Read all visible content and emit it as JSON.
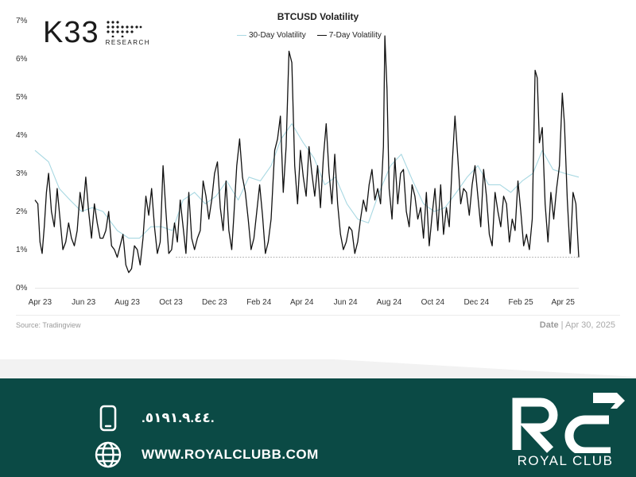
{
  "brand": {
    "name": "K33",
    "sub": "RESEARCH"
  },
  "chart_data": {
    "type": "line",
    "title": "BTCUSD Volatility",
    "x_range": [
      "2023-04-01",
      "2025-04-30"
    ],
    "ylim": [
      0,
      7
    ],
    "yticks": [
      "0%",
      "1%",
      "2%",
      "3%",
      "4%",
      "5%",
      "6%",
      "7%"
    ],
    "xticks": [
      "Apr 23",
      "Jun 23",
      "Aug 23",
      "Oct 23",
      "Dec 23",
      "Feb 24",
      "Apr 24",
      "Jun 24",
      "Aug 24",
      "Oct 24",
      "Dec 24",
      "Feb 25",
      "Apr 25"
    ],
    "reference_line": 0.8,
    "legend_position": "top-center",
    "grid": false,
    "series": [
      {
        "name": "30-Day Volatility",
        "color": "#a8d8e2",
        "points": [
          [
            "2023-04-01",
            3.6
          ],
          [
            "2023-04-20",
            3.3
          ],
          [
            "2023-05-05",
            2.6
          ],
          [
            "2023-05-20",
            2.3
          ],
          [
            "2023-06-05",
            2.0
          ],
          [
            "2023-06-20",
            2.1
          ],
          [
            "2023-07-05",
            2.0
          ],
          [
            "2023-07-25",
            1.5
          ],
          [
            "2023-08-10",
            1.3
          ],
          [
            "2023-08-25",
            1.3
          ],
          [
            "2023-09-10",
            1.6
          ],
          [
            "2023-09-25",
            1.6
          ],
          [
            "2023-10-10",
            1.5
          ],
          [
            "2023-10-25",
            2.3
          ],
          [
            "2023-11-10",
            2.5
          ],
          [
            "2023-11-25",
            2.2
          ],
          [
            "2023-12-10",
            2.4
          ],
          [
            "2023-12-25",
            2.8
          ],
          [
            "2024-01-10",
            2.3
          ],
          [
            "2024-01-25",
            2.9
          ],
          [
            "2024-02-10",
            2.8
          ],
          [
            "2024-02-25",
            3.2
          ],
          [
            "2024-03-10",
            3.9
          ],
          [
            "2024-03-25",
            4.3
          ],
          [
            "2024-04-10",
            3.8
          ],
          [
            "2024-04-25",
            3.4
          ],
          [
            "2024-05-10",
            2.7
          ],
          [
            "2024-05-25",
            2.9
          ],
          [
            "2024-06-10",
            2.2
          ],
          [
            "2024-06-25",
            1.8
          ],
          [
            "2024-07-10",
            1.7
          ],
          [
            "2024-07-25",
            2.5
          ],
          [
            "2024-08-10",
            3.2
          ],
          [
            "2024-08-25",
            3.5
          ],
          [
            "2024-09-10",
            2.8
          ],
          [
            "2024-09-25",
            2.2
          ],
          [
            "2024-10-10",
            2.0
          ],
          [
            "2024-10-25",
            2.1
          ],
          [
            "2024-11-10",
            2.5
          ],
          [
            "2024-11-25",
            2.9
          ],
          [
            "2024-12-10",
            3.2
          ],
          [
            "2024-12-25",
            2.7
          ],
          [
            "2025-01-10",
            2.7
          ],
          [
            "2025-01-25",
            2.5
          ],
          [
            "2025-02-10",
            2.8
          ],
          [
            "2025-02-25",
            3.0
          ],
          [
            "2025-03-10",
            3.6
          ],
          [
            "2025-03-25",
            3.1
          ],
          [
            "2025-04-10",
            3.0
          ],
          [
            "2025-04-30",
            2.9
          ]
        ]
      },
      {
        "name": "7-Day Volatility",
        "color": "#111111",
        "points": [
          [
            "2023-04-01",
            2.3
          ],
          [
            "2023-04-05",
            2.2
          ],
          [
            "2023-04-08",
            1.2
          ],
          [
            "2023-04-11",
            0.9
          ],
          [
            "2023-04-14",
            1.6
          ],
          [
            "2023-04-17",
            2.5
          ],
          [
            "2023-04-20",
            3.0
          ],
          [
            "2023-04-24",
            2.0
          ],
          [
            "2023-04-28",
            1.6
          ],
          [
            "2023-05-02",
            2.6
          ],
          [
            "2023-05-06",
            1.8
          ],
          [
            "2023-05-10",
            1.0
          ],
          [
            "2023-05-14",
            1.2
          ],
          [
            "2023-05-18",
            1.7
          ],
          [
            "2023-05-22",
            1.3
          ],
          [
            "2023-05-26",
            1.1
          ],
          [
            "2023-05-30",
            1.5
          ],
          [
            "2023-06-03",
            2.5
          ],
          [
            "2023-06-07",
            2.0
          ],
          [
            "2023-06-11",
            2.9
          ],
          [
            "2023-06-15",
            2.0
          ],
          [
            "2023-06-19",
            1.3
          ],
          [
            "2023-06-23",
            2.2
          ],
          [
            "2023-06-27",
            1.7
          ],
          [
            "2023-07-01",
            1.3
          ],
          [
            "2023-07-05",
            1.3
          ],
          [
            "2023-07-09",
            1.5
          ],
          [
            "2023-07-13",
            2.0
          ],
          [
            "2023-07-17",
            1.1
          ],
          [
            "2023-07-21",
            1.0
          ],
          [
            "2023-07-25",
            0.8
          ],
          [
            "2023-07-29",
            1.1
          ],
          [
            "2023-08-02",
            1.4
          ],
          [
            "2023-08-06",
            0.6
          ],
          [
            "2023-08-10",
            0.4
          ],
          [
            "2023-08-14",
            0.5
          ],
          [
            "2023-08-18",
            1.1
          ],
          [
            "2023-08-22",
            1.0
          ],
          [
            "2023-08-26",
            0.6
          ],
          [
            "2023-08-30",
            1.3
          ],
          [
            "2023-09-03",
            2.4
          ],
          [
            "2023-09-07",
            1.9
          ],
          [
            "2023-09-11",
            2.6
          ],
          [
            "2023-09-15",
            1.6
          ],
          [
            "2023-09-19",
            0.9
          ],
          [
            "2023-09-23",
            1.2
          ],
          [
            "2023-09-27",
            3.2
          ],
          [
            "2023-10-01",
            2.0
          ],
          [
            "2023-10-05",
            0.9
          ],
          [
            "2023-10-09",
            1.0
          ],
          [
            "2023-10-13",
            1.7
          ],
          [
            "2023-10-17",
            1.2
          ],
          [
            "2023-10-21",
            2.3
          ],
          [
            "2023-10-25",
            1.6
          ],
          [
            "2023-10-29",
            0.9
          ],
          [
            "2023-11-02",
            2.5
          ],
          [
            "2023-11-06",
            1.3
          ],
          [
            "2023-11-10",
            1.0
          ],
          [
            "2023-11-14",
            1.3
          ],
          [
            "2023-11-18",
            1.5
          ],
          [
            "2023-11-22",
            2.8
          ],
          [
            "2023-11-26",
            2.4
          ],
          [
            "2023-11-30",
            1.8
          ],
          [
            "2023-12-04",
            2.3
          ],
          [
            "2023-12-08",
            3.0
          ],
          [
            "2023-12-12",
            3.3
          ],
          [
            "2023-12-16",
            2.1
          ],
          [
            "2023-12-20",
            1.5
          ],
          [
            "2023-12-24",
            2.8
          ],
          [
            "2023-12-28",
            1.5
          ],
          [
            "2024-01-01",
            1.0
          ],
          [
            "2024-01-04",
            1.9
          ],
          [
            "2024-01-08",
            3.2
          ],
          [
            "2024-01-12",
            3.9
          ],
          [
            "2024-01-16",
            2.9
          ],
          [
            "2024-01-20",
            2.5
          ],
          [
            "2024-01-24",
            1.8
          ],
          [
            "2024-01-28",
            1.0
          ],
          [
            "2024-02-01",
            1.3
          ],
          [
            "2024-02-05",
            2.0
          ],
          [
            "2024-02-09",
            2.7
          ],
          [
            "2024-02-13",
            1.9
          ],
          [
            "2024-02-17",
            0.9
          ],
          [
            "2024-02-21",
            1.2
          ],
          [
            "2024-02-25",
            1.8
          ],
          [
            "2024-03-01",
            3.6
          ],
          [
            "2024-03-05",
            3.9
          ],
          [
            "2024-03-09",
            4.5
          ],
          [
            "2024-03-13",
            2.5
          ],
          [
            "2024-03-17",
            3.7
          ],
          [
            "2024-03-21",
            6.2
          ],
          [
            "2024-03-25",
            5.9
          ],
          [
            "2024-03-29",
            3.2
          ],
          [
            "2024-04-02",
            2.2
          ],
          [
            "2024-04-06",
            3.6
          ],
          [
            "2024-04-10",
            2.9
          ],
          [
            "2024-04-14",
            2.4
          ],
          [
            "2024-04-18",
            3.7
          ],
          [
            "2024-04-22",
            3.0
          ],
          [
            "2024-04-26",
            2.4
          ],
          [
            "2024-04-30",
            3.2
          ],
          [
            "2024-05-04",
            2.1
          ],
          [
            "2024-05-08",
            3.4
          ],
          [
            "2024-05-12",
            4.3
          ],
          [
            "2024-05-16",
            3.0
          ],
          [
            "2024-05-20",
            2.2
          ],
          [
            "2024-05-24",
            3.5
          ],
          [
            "2024-05-28",
            2.2
          ],
          [
            "2024-06-01",
            1.4
          ],
          [
            "2024-06-05",
            1.0
          ],
          [
            "2024-06-09",
            1.2
          ],
          [
            "2024-06-13",
            1.6
          ],
          [
            "2024-06-17",
            1.5
          ],
          [
            "2024-06-21",
            0.9
          ],
          [
            "2024-06-25",
            1.2
          ],
          [
            "2024-06-29",
            1.8
          ],
          [
            "2024-07-03",
            2.3
          ],
          [
            "2024-07-07",
            2.0
          ],
          [
            "2024-07-11",
            2.7
          ],
          [
            "2024-07-15",
            3.1
          ],
          [
            "2024-07-19",
            2.3
          ],
          [
            "2024-07-23",
            2.6
          ],
          [
            "2024-07-27",
            2.2
          ],
          [
            "2024-07-31",
            3.7
          ],
          [
            "2024-08-02",
            6.6
          ],
          [
            "2024-08-05",
            5.2
          ],
          [
            "2024-08-08",
            2.6
          ],
          [
            "2024-08-12",
            1.8
          ],
          [
            "2024-08-16",
            3.4
          ],
          [
            "2024-08-20",
            2.2
          ],
          [
            "2024-08-24",
            3.0
          ],
          [
            "2024-08-28",
            3.1
          ],
          [
            "2024-09-01",
            2.0
          ],
          [
            "2024-09-05",
            1.6
          ],
          [
            "2024-09-09",
            2.7
          ],
          [
            "2024-09-13",
            2.4
          ],
          [
            "2024-09-17",
            1.8
          ],
          [
            "2024-09-21",
            2.1
          ],
          [
            "2024-09-25",
            1.3
          ],
          [
            "2024-09-29",
            2.5
          ],
          [
            "2024-10-03",
            1.1
          ],
          [
            "2024-10-07",
            1.9
          ],
          [
            "2024-10-11",
            2.6
          ],
          [
            "2024-10-15",
            1.5
          ],
          [
            "2024-10-19",
            2.7
          ],
          [
            "2024-10-23",
            1.4
          ],
          [
            "2024-10-27",
            2.1
          ],
          [
            "2024-10-31",
            1.6
          ],
          [
            "2024-11-04",
            3.2
          ],
          [
            "2024-11-08",
            4.5
          ],
          [
            "2024-11-12",
            3.4
          ],
          [
            "2024-11-16",
            2.2
          ],
          [
            "2024-11-20",
            2.6
          ],
          [
            "2024-11-24",
            2.5
          ],
          [
            "2024-11-28",
            1.9
          ],
          [
            "2024-12-02",
            2.7
          ],
          [
            "2024-12-06",
            3.2
          ],
          [
            "2024-12-10",
            2.4
          ],
          [
            "2024-12-14",
            1.6
          ],
          [
            "2024-12-18",
            3.1
          ],
          [
            "2024-12-22",
            2.4
          ],
          [
            "2024-12-26",
            1.4
          ],
          [
            "2024-12-30",
            1.1
          ],
          [
            "2025-01-03",
            2.5
          ],
          [
            "2025-01-07",
            2.0
          ],
          [
            "2025-01-11",
            1.6
          ],
          [
            "2025-01-15",
            2.4
          ],
          [
            "2025-01-19",
            2.2
          ],
          [
            "2025-01-23",
            1.2
          ],
          [
            "2025-01-27",
            1.8
          ],
          [
            "2025-01-31",
            1.5
          ],
          [
            "2025-02-04",
            2.8
          ],
          [
            "2025-02-08",
            2.0
          ],
          [
            "2025-02-12",
            1.1
          ],
          [
            "2025-02-16",
            1.4
          ],
          [
            "2025-02-20",
            1.0
          ],
          [
            "2025-02-24",
            1.8
          ],
          [
            "2025-02-28",
            5.7
          ],
          [
            "2025-03-03",
            5.5
          ],
          [
            "2025-03-06",
            3.8
          ],
          [
            "2025-03-10",
            4.2
          ],
          [
            "2025-03-14",
            2.2
          ],
          [
            "2025-03-18",
            1.2
          ],
          [
            "2025-03-22",
            2.5
          ],
          [
            "2025-03-26",
            1.8
          ],
          [
            "2025-03-30",
            2.6
          ],
          [
            "2025-04-03",
            3.2
          ],
          [
            "2025-04-07",
            5.1
          ],
          [
            "2025-04-10",
            4.3
          ],
          [
            "2025-04-14",
            2.3
          ],
          [
            "2025-04-18",
            0.9
          ],
          [
            "2025-04-22",
            2.5
          ],
          [
            "2025-04-26",
            2.2
          ],
          [
            "2025-04-30",
            0.8
          ]
        ]
      }
    ]
  },
  "source": "Source:  Tradingview",
  "date_label": "Date",
  "date_value": "Apr 30, 2025",
  "footer": {
    "phone": ".٥١٩١.٩.٤٤.",
    "website": "WWW.ROYALCLUBB.COM",
    "logo_name": "ROYAL CLUB",
    "colors": {
      "band": "#0b4a45",
      "text": "#ffffff"
    }
  }
}
